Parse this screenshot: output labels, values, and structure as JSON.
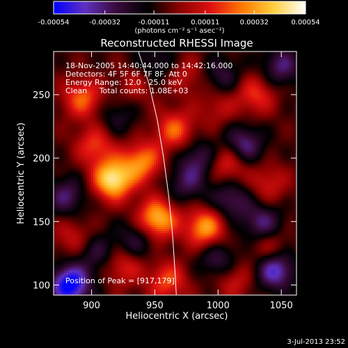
{
  "chart_data": {
    "type": "heatmap",
    "title": "Reconstructed RHESSI Image",
    "xlabel": "Heliocentric X (arcsec)",
    "ylabel": "Heliocentric Y (arcsec)",
    "xlim": [
      870,
      1062
    ],
    "ylim": [
      92,
      284
    ],
    "x_ticks": [
      900,
      950,
      1000,
      1050
    ],
    "y_ticks": [
      100,
      150,
      200,
      250
    ],
    "colorbar": {
      "label": "(photons cm⁻² s⁻¹ asec⁻²)",
      "ticks": [
        "-0.00054",
        "-0.00032",
        "-0.00011",
        "0.00011",
        "0.00032",
        "0.00054"
      ],
      "min": -0.00054,
      "max": 0.00054,
      "colors": [
        "#0000ff",
        "#6030c0",
        "#3a0a3a",
        "#000000",
        "#8a0000",
        "#e01010",
        "#ff7a00",
        "#ffd040",
        "#ffffff"
      ]
    },
    "annotations": [
      "18-Nov-2005 14:40:44.000 to 14:42:16.000",
      "Detectors: 4F 5F 6F 7F 8F, Att 0",
      "Energy Range: 12.0 - 25.0 keV",
      "Clean     Total counts: 1.08E+03"
    ],
    "peak_label": "Position of Peak = [917,179]",
    "peak": {
      "x": 917,
      "y": 179
    },
    "sources": [
      {
        "x": 917,
        "y": 183,
        "value": 0.00054
      },
      {
        "x": 952,
        "y": 152,
        "value": 0.00045
      },
      {
        "x": 940,
        "y": 197,
        "value": 0.00035
      },
      {
        "x": 990,
        "y": 145,
        "value": 0.0004
      },
      {
        "x": 966,
        "y": 222,
        "value": 0.0003
      },
      {
        "x": 903,
        "y": 210,
        "value": 0.00025
      },
      {
        "x": 1008,
        "y": 196,
        "value": 0.00026
      },
      {
        "x": 1030,
        "y": 250,
        "value": 0.00024
      },
      {
        "x": 893,
        "y": 247,
        "value": 0.0003
      },
      {
        "x": 1040,
        "y": 180,
        "value": 0.00018
      },
      {
        "x": 960,
        "y": 103,
        "value": 0.00027
      },
      {
        "x": 925,
        "y": 115,
        "value": 0.00022
      },
      {
        "x": 1040,
        "y": 130,
        "value": 0.0002
      },
      {
        "x": 1013,
        "y": 104,
        "value": 0.00018
      },
      {
        "x": 885,
        "y": 138,
        "value": 0.00016
      },
      {
        "x": 975,
        "y": 265,
        "value": 0.00015
      },
      {
        "x": 935,
        "y": 258,
        "value": 0.00014
      },
      {
        "x": 1000,
        "y": 240,
        "value": 0.00014
      },
      {
        "x": 883,
        "y": 100,
        "value": -0.0005
      },
      {
        "x": 1045,
        "y": 112,
        "value": -0.00038
      },
      {
        "x": 1020,
        "y": 210,
        "value": -0.0003
      },
      {
        "x": 1035,
        "y": 148,
        "value": -0.00028
      },
      {
        "x": 1010,
        "y": 167,
        "value": -0.00024
      },
      {
        "x": 985,
        "y": 200,
        "value": -0.00022
      },
      {
        "x": 975,
        "y": 180,
        "value": -0.0002
      },
      {
        "x": 1050,
        "y": 272,
        "value": -0.00025
      },
      {
        "x": 880,
        "y": 170,
        "value": -0.00024
      },
      {
        "x": 935,
        "y": 135,
        "value": -0.0002
      },
      {
        "x": 905,
        "y": 125,
        "value": -0.00018
      },
      {
        "x": 1000,
        "y": 120,
        "value": -0.00022
      },
      {
        "x": 950,
        "y": 275,
        "value": -0.00016
      },
      {
        "x": 1003,
        "y": 265,
        "value": -0.00018
      },
      {
        "x": 920,
        "y": 232,
        "value": -0.00014
      }
    ],
    "limb_curve": [
      {
        "x": 937,
        "y": 284
      },
      {
        "x": 945,
        "y": 260
      },
      {
        "x": 952,
        "y": 230
      },
      {
        "x": 957,
        "y": 200
      },
      {
        "x": 961,
        "y": 170
      },
      {
        "x": 964,
        "y": 140
      },
      {
        "x": 966,
        "y": 110
      },
      {
        "x": 967,
        "y": 92
      }
    ]
  },
  "timestamp": "3-Jul-2013 23:52"
}
